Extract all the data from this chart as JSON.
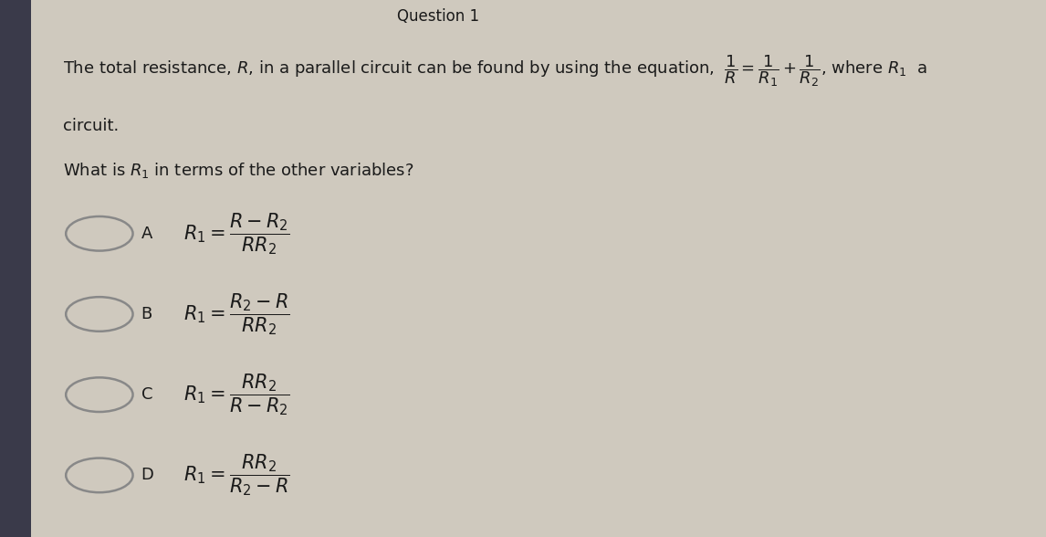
{
  "bg_color": "#cfc9be",
  "panel_color": "#ddd8cc",
  "left_strip_color": "#3a3a4a",
  "text_color": "#1a1a1a",
  "circle_color": "#888888",
  "title_text": "Question 1",
  "line1": "The total resistance, $R$, in a parallel circuit can be found by using the equation,  $\\dfrac{1}{R} = \\dfrac{1}{R_1} + \\dfrac{1}{R_2}$, where $R_1$  a",
  "line2": "circuit.",
  "line3": "What is $R_1$ in terms of the other variables?",
  "options": [
    {
      "label": "A",
      "expr": "$R_1 = \\dfrac{R-R_2}{RR_2}$"
    },
    {
      "label": "B",
      "expr": "$R_1 = \\dfrac{R_2-R}{RR_2}$"
    },
    {
      "label": "C",
      "expr": "$R_1 = \\dfrac{RR_2}{R-R_2}$"
    },
    {
      "label": "D",
      "expr": "$R_1 = \\dfrac{RR_2}{R_2-R}$"
    }
  ],
  "font_size_body": 13,
  "font_size_title": 12,
  "font_size_option_label": 13,
  "font_size_option_expr": 15
}
